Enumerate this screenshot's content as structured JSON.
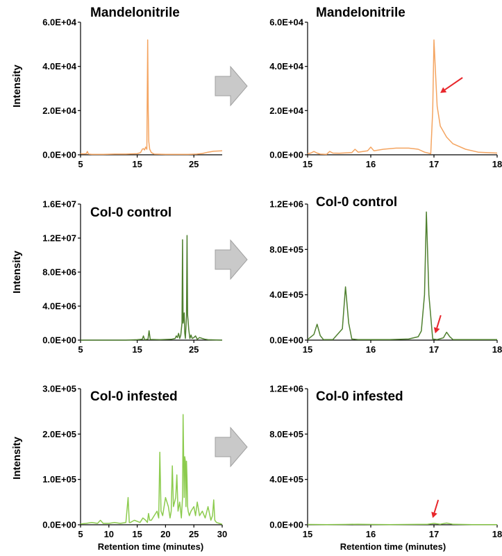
{
  "colors": {
    "orange": "#F4A460",
    "dark_green": "#4E7F2E",
    "light_green": "#8CCB4E",
    "arrow_red": "#E8262B",
    "arrow_gray": "#C9C9C9"
  },
  "ylabels": [
    "Intensity",
    "Intensity",
    "Intensity"
  ],
  "xlabels": [
    "Retention time (minutes)",
    "Retention time (minutes)"
  ],
  "chart_data": [
    {
      "type": "line",
      "title": "Mandelonitrile",
      "color": "#F4A460",
      "xlim": [
        5,
        30
      ],
      "ylim": [
        0,
        60000
      ],
      "xticks": [
        5,
        15,
        25
      ],
      "yticks": [
        "0.0E+00",
        "2.0E+04",
        "4.0E+04",
        "6.0E+04"
      ],
      "ytick_values": [
        0,
        20000,
        40000,
        60000
      ],
      "series": [
        {
          "x": [
            5,
            5.5,
            6,
            6.2,
            6.4,
            7,
            9,
            11,
            13,
            15,
            15.6,
            15.9,
            16.1,
            16.3,
            16.5,
            16.7,
            16.85,
            16.95,
            17.05,
            17.2,
            17.5,
            18,
            20,
            22,
            24,
            25.5,
            26.5,
            27.5,
            28.5,
            30
          ],
          "y": [
            500,
            400,
            500,
            1500,
            300,
            200,
            200,
            300,
            300,
            500,
            1000,
            2500,
            2800,
            2200,
            3500,
            2500,
            52000,
            20000,
            6000,
            2500,
            1000,
            300,
            200,
            200,
            200,
            300,
            600,
            1200,
            1600,
            1800
          ]
        }
      ]
    },
    {
      "type": "line",
      "title": "Mandelonitrile",
      "color": "#F4A460",
      "xlim": [
        15,
        18
      ],
      "ylim": [
        0,
        60000
      ],
      "xticks": [
        15,
        16,
        17,
        18
      ],
      "yticks": [
        "0.0E+00",
        "2.0E+04",
        "4.0E+04",
        "6.0E+04"
      ],
      "ytick_values": [
        0,
        20000,
        40000,
        60000
      ],
      "annotation": {
        "type": "arrow",
        "x": 17.1,
        "y": 28000
      },
      "series": [
        {
          "x": [
            15,
            15.05,
            15.1,
            15.15,
            15.2,
            15.3,
            15.35,
            15.4,
            15.5,
            15.7,
            15.75,
            15.8,
            15.95,
            16,
            16.05,
            16.2,
            16.4,
            16.6,
            16.75,
            16.85,
            16.95,
            16.98,
            17,
            17.02,
            17.05,
            17.1,
            17.2,
            17.3,
            17.5,
            17.7,
            18
          ],
          "y": [
            500,
            800,
            1500,
            800,
            300,
            200,
            1500,
            800,
            700,
            1000,
            2500,
            1200,
            1800,
            3500,
            1800,
            2500,
            3000,
            3000,
            2500,
            1200,
            500,
            20000,
            52000,
            40000,
            22000,
            13000,
            8000,
            5000,
            2500,
            1200,
            800
          ]
        }
      ]
    },
    {
      "type": "line",
      "title": "Col-0 control",
      "color": "#4E7F2E",
      "xlim": [
        5,
        30
      ],
      "ylim": [
        0,
        16000000
      ],
      "xticks": [
        5,
        15,
        25
      ],
      "yticks": [
        "0.0E+00",
        "4.0E+06",
        "8.0E+06",
        "1.2E+07",
        "1.6E+07"
      ],
      "ytick_values": [
        0,
        4000000,
        8000000,
        12000000,
        16000000
      ],
      "series": [
        {
          "x": [
            5,
            8,
            11,
            13,
            15,
            15.9,
            16.1,
            16.3,
            16.9,
            17.1,
            17.3,
            19,
            21,
            21.7,
            21.9,
            22.1,
            22.3,
            22.5,
            22.7,
            22.9,
            23,
            23.1,
            23.3,
            23.4,
            23.5,
            23.7,
            23.8,
            23.9,
            24.1,
            24.3,
            24.5,
            24.7,
            25,
            25.3,
            25.6,
            26,
            26.5,
            27,
            27.5,
            30
          ],
          "y": [
            0,
            0,
            0,
            0,
            50000,
            100000,
            500000,
            50000,
            100000,
            1100000,
            80000,
            50000,
            100000,
            200000,
            500000,
            300000,
            800000,
            200000,
            600000,
            2000000,
            11800000,
            2000000,
            3200000,
            800000,
            200000,
            2800000,
            12300000,
            3000000,
            1200000,
            200000,
            600000,
            200000,
            300000,
            500000,
            100000,
            300000,
            200000,
            100000,
            50000,
            0
          ]
        }
      ]
    },
    {
      "type": "line",
      "title": "Col-0 control",
      "color": "#4E7F2E",
      "xlim": [
        15,
        18
      ],
      "ylim": [
        0,
        1200000
      ],
      "xticks": [
        15,
        16,
        17,
        18
      ],
      "yticks": [
        "0.0E+00",
        "4.0E+05",
        "8.0E+05",
        "1.2E+06"
      ],
      "ytick_values": [
        0,
        400000,
        800000,
        1200000
      ],
      "annotation": {
        "type": "arrow",
        "x": 17.02,
        "y": 60000
      },
      "series": [
        {
          "x": [
            15,
            15.1,
            15.15,
            15.2,
            15.25,
            15.4,
            15.55,
            15.6,
            15.65,
            15.7,
            15.8,
            16,
            16.3,
            16.6,
            16.75,
            16.8,
            16.85,
            16.88,
            16.92,
            16.98,
            17.05,
            17.15,
            17.2,
            17.25,
            17.3,
            17.4,
            17.6,
            18
          ],
          "y": [
            5000,
            50000,
            140000,
            40000,
            5000,
            5000,
            100000,
            470000,
            150000,
            10000,
            5000,
            5000,
            5000,
            10000,
            30000,
            80000,
            400000,
            1130000,
            400000,
            10000,
            5000,
            20000,
            70000,
            30000,
            5000,
            5000,
            5000,
            5000
          ]
        }
      ]
    },
    {
      "type": "line",
      "title": "Col-0 infested",
      "color": "#8CCB4E",
      "xlim": [
        5,
        30
      ],
      "ylim": [
        0,
        300000
      ],
      "xticks": [
        5,
        10,
        15,
        20,
        25,
        30
      ],
      "yticks": [
        "0.0E+00",
        "1.0E+05",
        "2.0E+05",
        "3.0E+05"
      ],
      "ytick_values": [
        0,
        100000,
        200000,
        300000
      ],
      "series": [
        {
          "x": [
            5,
            6,
            7,
            8,
            8.5,
            9,
            10,
            11,
            12,
            13,
            13.4,
            13.6,
            13.8,
            14.5,
            15.5,
            16,
            16.5,
            16.8,
            17,
            17.2,
            17.5,
            18,
            18.5,
            18.8,
            19,
            19.2,
            19.5,
            20,
            20.5,
            20.8,
            21,
            21.2,
            21.4,
            21.8,
            22,
            22.2,
            22.5,
            22.8,
            23,
            23.1,
            23.2,
            23.3,
            23.4,
            23.5,
            23.6,
            23.7,
            23.8,
            23.9,
            24,
            24.2,
            24.5,
            25,
            25.3,
            25.6,
            26,
            26.5,
            27,
            27.5,
            28,
            28.3,
            28.5,
            28.7,
            29,
            29.5,
            30
          ],
          "y": [
            2000,
            3000,
            5000,
            3000,
            10000,
            3000,
            3000,
            5000,
            3000,
            5000,
            60000,
            5000,
            5000,
            10000,
            5000,
            15000,
            10000,
            5000,
            25000,
            10000,
            10000,
            20000,
            30000,
            15000,
            160000,
            30000,
            20000,
            60000,
            40000,
            15000,
            30000,
            130000,
            40000,
            60000,
            110000,
            30000,
            50000,
            15000,
            60000,
            243000,
            150000,
            60000,
            150000,
            140000,
            40000,
            140000,
            100000,
            40000,
            30000,
            20000,
            30000,
            40000,
            20000,
            50000,
            20000,
            30000,
            15000,
            40000,
            10000,
            20000,
            55000,
            10000,
            5000,
            3000,
            1000
          ]
        }
      ]
    },
    {
      "type": "line",
      "title": "Col-0 infested",
      "color": "#8CCB4E",
      "xlim": [
        15,
        18
      ],
      "ylim": [
        0,
        1200000
      ],
      "xticks": [
        15,
        16,
        17,
        18
      ],
      "yticks": [
        "0.0E+00",
        "4.0E+05",
        "8.0E+05",
        "1.2E+06"
      ],
      "ytick_values": [
        0,
        400000,
        800000,
        1200000
      ],
      "annotation": {
        "type": "arrow",
        "x": 16.98,
        "y": 60000
      },
      "series": [
        {
          "x": [
            15,
            15.3,
            15.6,
            15.8,
            16,
            16.3,
            16.6,
            16.9,
            17,
            17.1,
            17.2,
            17.3,
            17.6,
            18
          ],
          "y": [
            3000,
            2000,
            3000,
            5000,
            3000,
            2000,
            3000,
            5000,
            12000,
            5000,
            15000,
            4000,
            2000,
            2000
          ]
        }
      ]
    }
  ]
}
